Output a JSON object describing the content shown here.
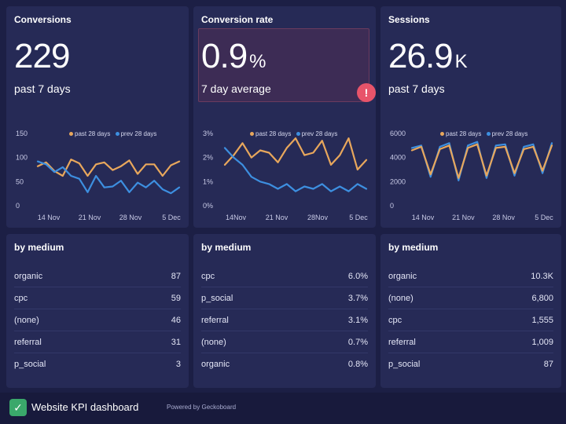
{
  "colors": {
    "background": "#1c1f45",
    "panel": "#262a56",
    "series_past": "#e8a75c",
    "series_prev": "#3d8fe0",
    "alert": "#e8546a",
    "logo": "#3aa86b"
  },
  "panels": [
    {
      "title": "Conversions",
      "value": "229",
      "unit": "",
      "sub": "past 7 days",
      "legend": [
        "past 28 days",
        "prev 28 days"
      ],
      "chart_data": {
        "type": "line",
        "y_ticks": [
          "150",
          "100",
          "50",
          "0"
        ],
        "ylim": [
          0,
          150
        ],
        "x_ticks": [
          "14 Nov",
          "21 Nov",
          "28 Nov",
          "5 Dec"
        ],
        "series": [
          {
            "name": "past 28 days",
            "color": "#e8a75c",
            "values": [
              82,
              90,
              72,
              62,
              96,
              88,
              62,
              86,
              90,
              74,
              82,
              94,
              66,
              86,
              86,
              62,
              84,
              92
            ]
          },
          {
            "name": "prev 28 days",
            "color": "#3d8fe0",
            "values": [
              92,
              86,
              70,
              80,
              62,
              56,
              28,
              62,
              38,
              40,
              52,
              28,
              48,
              38,
              52,
              34,
              26,
              38
            ]
          }
        ]
      }
    },
    {
      "title": "Conversion rate",
      "value": "0.9",
      "unit": "%",
      "sub": "7 day average",
      "alert": "!",
      "legend": [
        "past 28 days",
        "prev 28 days"
      ],
      "chart_data": {
        "type": "line",
        "y_ticks": [
          "3%",
          "2%",
          "1%",
          "0%"
        ],
        "ylim": [
          0,
          3
        ],
        "x_ticks": [
          "14Nov",
          "21 Nov",
          "28Nov",
          "5 Dec"
        ],
        "series": [
          {
            "name": "past 28 days",
            "color": "#e8a75c",
            "values": [
              1.7,
              2.1,
              2.6,
              2.0,
              2.3,
              2.2,
              1.8,
              2.4,
              2.8,
              2.1,
              2.2,
              2.7,
              1.7,
              2.1,
              2.8,
              1.5,
              1.9
            ]
          },
          {
            "name": "prev 28 days",
            "color": "#3d8fe0",
            "values": [
              2.4,
              2.0,
              1.7,
              1.2,
              1.0,
              0.9,
              0.7,
              0.9,
              0.6,
              0.8,
              0.7,
              0.9,
              0.6,
              0.8,
              0.6,
              0.9,
              0.7
            ]
          }
        ]
      }
    },
    {
      "title": "Sessions",
      "value": "26.9",
      "unit": "K",
      "sub": "past 7 days",
      "legend": [
        "past 28 days",
        "prev 28 days"
      ],
      "chart_data": {
        "type": "line",
        "y_ticks": [
          "6000",
          "4000",
          "2000",
          "0"
        ],
        "ylim": [
          0,
          6000
        ],
        "x_ticks": [
          "14 Nov",
          "21 Nov",
          "28 Nov",
          "5 Dec"
        ],
        "series": [
          {
            "name": "prev 28 days",
            "color": "#3d8fe0",
            "values": [
              4800,
              5000,
              2400,
              4900,
              5200,
              2100,
              5000,
              5300,
              2300,
              5000,
              5100,
              2500,
              4900,
              5100,
              2700,
              5200
            ]
          },
          {
            "name": "past 28 days",
            "color": "#e8a75c",
            "values": [
              4600,
              4900,
              2600,
              4700,
              5000,
              2300,
              4800,
              5100,
              2500,
              4800,
              4900,
              2700,
              4700,
              4900,
              2900,
              5000
            ]
          }
        ]
      }
    }
  ],
  "tables": [
    {
      "title": "by medium",
      "rows": [
        {
          "label": "organic",
          "value": "87"
        },
        {
          "label": "cpc",
          "value": "59"
        },
        {
          "label": "(none)",
          "value": "46"
        },
        {
          "label": "referral",
          "value": "31"
        },
        {
          "label": "p_social",
          "value": "3"
        }
      ]
    },
    {
      "title": "by medium",
      "rows": [
        {
          "label": "cpc",
          "value": "6.0%"
        },
        {
          "label": "p_social",
          "value": "3.7%"
        },
        {
          "label": "referral",
          "value": "3.1%"
        },
        {
          "label": "(none)",
          "value": "0.7%"
        },
        {
          "label": "organic",
          "value": "0.8%"
        }
      ]
    },
    {
      "title": "by medium",
      "rows": [
        {
          "label": "organic",
          "value": "10.3K"
        },
        {
          "label": "(none)",
          "value": "6,800"
        },
        {
          "label": "cpc",
          "value": "1,555"
        },
        {
          "label": "referral",
          "value": "1,009"
        },
        {
          "label": "p_social",
          "value": "87"
        }
      ]
    }
  ],
  "footer": {
    "logo_icon": "check-mark",
    "title": "Website KPI dashboard",
    "powered": "Powered by Geckoboard"
  }
}
